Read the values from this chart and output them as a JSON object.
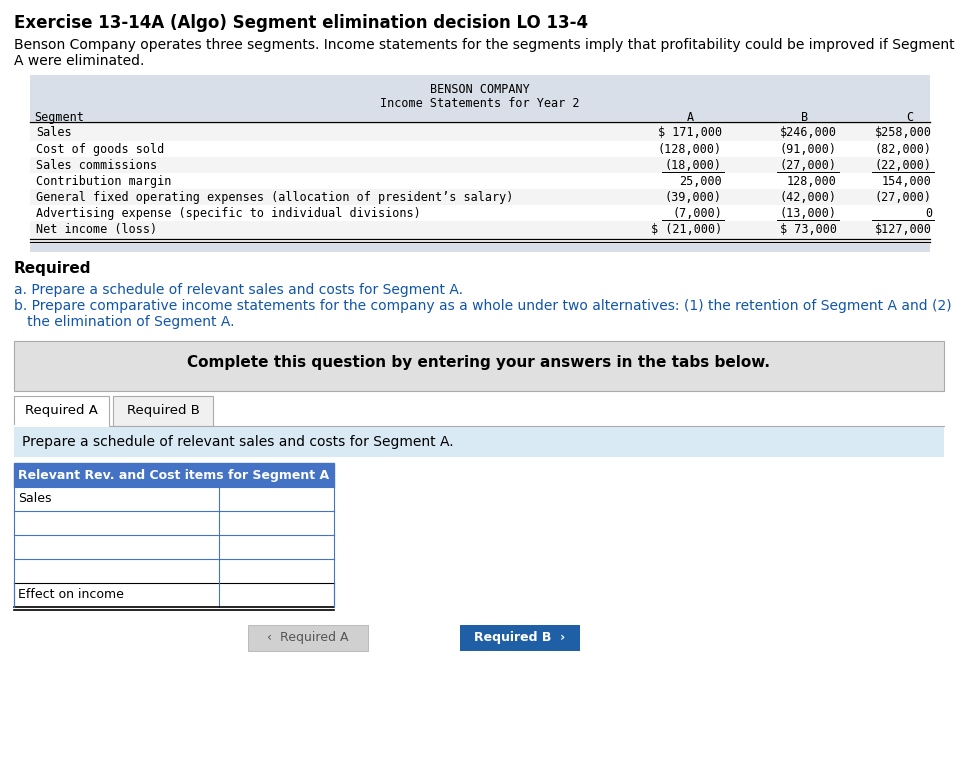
{
  "title": "Exercise 13-14A (Algo) Segment elimination decision LO 13-4",
  "desc_line1": "Benson Company operates three segments. Income statements for the segments imply that profitability could be improved if Segment",
  "desc_line2": "A were eliminated.",
  "table_title1": "BENSON COMPANY",
  "table_title2": "Income Statements for Year 2",
  "col_headers": [
    "Segment",
    "A",
    "B",
    "C"
  ],
  "rows": [
    [
      "Sales",
      "$ 171,000",
      "$246,000",
      "$258,000"
    ],
    [
      "Cost of goods sold",
      "(128,000)",
      "(91,000)",
      "(82,000)"
    ],
    [
      "Sales commissions",
      "(18,000)",
      "(27,000)",
      "(22,000)"
    ],
    [
      "Contribution margin",
      "25,000",
      "128,000",
      "154,000"
    ],
    [
      "General fixed operating expenses (allocation of president’s salary)",
      "(39,000)",
      "(42,000)",
      "(27,000)"
    ],
    [
      "Advertising expense (specific to individual divisions)",
      "(7,000)",
      "(13,000)",
      "0"
    ],
    [
      "Net income (loss)",
      "$ (21,000)",
      "$ 73,000",
      "$127,000"
    ]
  ],
  "required_label": "Required",
  "req_a": "a. Prepare a schedule of relevant sales and costs for Segment A.",
  "req_b_line1": "b. Prepare comparative income statements for the company as a whole under two alternatives: (1) the retention of Segment A and (2)",
  "req_b_line2": "   the elimination of Segment A.",
  "complete_box": "Complete this question by entering your answers in the tabs below.",
  "tab1": "Required A",
  "tab2": "Required B",
  "instruct": "Prepare a schedule of relevant sales and costs for Segment A.",
  "small_table_header": "Relevant Rev. and Cost items for Segment A",
  "small_table_rows": [
    "Sales",
    "",
    "",
    "",
    "Effect on income"
  ],
  "btn1": "‹  Required A",
  "btn2": "Required B  ›",
  "table_header_bg": "#d9dfe8",
  "complete_box_bg": "#e0e0e0",
  "light_blue_bg": "#daeaf5",
  "small_table_header_bg": "#4472c4",
  "small_table_header_fg": "#ffffff",
  "small_table_border": "#4472c4",
  "btn1_bg": "#d0d0d0",
  "btn1_fg": "#555555",
  "btn2_bg": "#1f5fa6",
  "btn2_fg": "#ffffff"
}
